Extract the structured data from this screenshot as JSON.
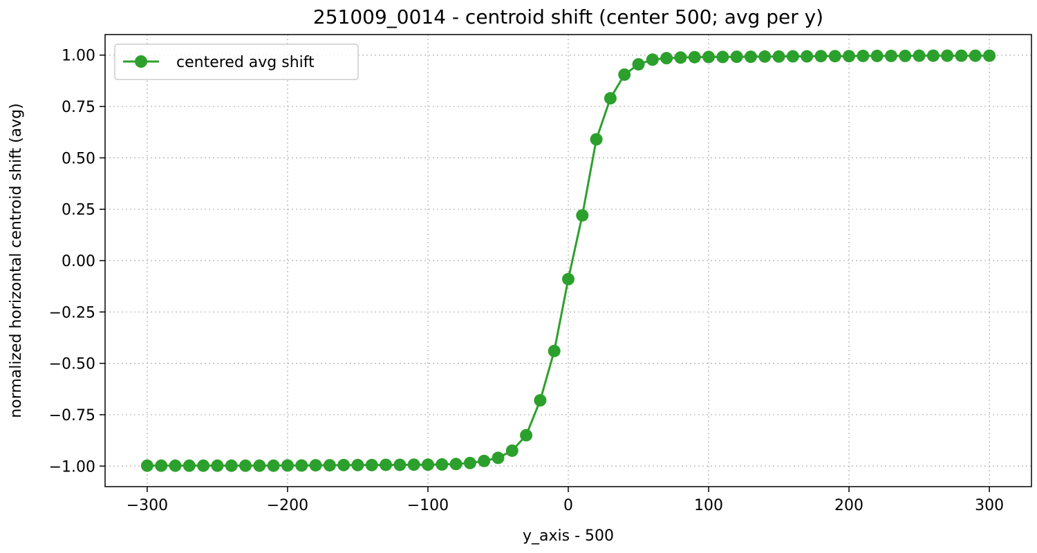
{
  "chart_data": {
    "type": "line",
    "title": "251009_0014 - centroid shift (center 500; avg per y)",
    "xlabel": "y_axis - 500",
    "ylabel": "normalized horizontal centroid shift (avg)",
    "xlim": [
      -330,
      330
    ],
    "ylim": [
      -1.1,
      1.1
    ],
    "xticks": [
      -300,
      -200,
      -100,
      0,
      100,
      200,
      300
    ],
    "xtick_labels": [
      "−300",
      "−200",
      "−100",
      "0",
      "100",
      "200",
      "300"
    ],
    "yticks": [
      -1.0,
      -0.75,
      -0.5,
      -0.25,
      0.0,
      0.25,
      0.5,
      0.75,
      1.0
    ],
    "ytick_labels": [
      "−1.00",
      "−0.75",
      "−0.50",
      "−0.25",
      "0.00",
      "0.25",
      "0.50",
      "0.75",
      "1.00"
    ],
    "grid": true,
    "legend_position": "top-left",
    "series": [
      {
        "name": "centered avg shift",
        "color": "#2ca02c",
        "marker": "circle",
        "x": [
          -300,
          -290,
          -280,
          -270,
          -260,
          -250,
          -240,
          -230,
          -220,
          -210,
          -200,
          -190,
          -180,
          -170,
          -160,
          -150,
          -140,
          -130,
          -120,
          -110,
          -100,
          -90,
          -80,
          -70,
          -60,
          -50,
          -40,
          -30,
          -20,
          -10,
          0,
          10,
          20,
          30,
          40,
          50,
          60,
          70,
          80,
          90,
          100,
          110,
          120,
          130,
          140,
          150,
          160,
          170,
          180,
          190,
          200,
          210,
          220,
          230,
          240,
          250,
          260,
          270,
          280,
          290,
          300
        ],
        "y": [
          -0.998,
          -0.998,
          -0.998,
          -0.998,
          -0.998,
          -0.998,
          -0.998,
          -0.998,
          -0.998,
          -0.998,
          -0.997,
          -0.997,
          -0.996,
          -0.996,
          -0.995,
          -0.995,
          -0.995,
          -0.994,
          -0.994,
          -0.993,
          -0.993,
          -0.992,
          -0.99,
          -0.985,
          -0.975,
          -0.96,
          -0.925,
          -0.85,
          -0.68,
          -0.44,
          -0.09,
          0.22,
          0.59,
          0.79,
          0.905,
          0.955,
          0.978,
          0.985,
          0.988,
          0.99,
          0.991,
          0.991,
          0.992,
          0.992,
          0.993,
          0.993,
          0.994,
          0.994,
          0.995,
          0.995,
          0.995,
          0.996,
          0.996,
          0.996,
          0.996,
          0.997,
          0.997,
          0.997,
          0.997,
          0.997,
          0.997
        ]
      }
    ]
  }
}
